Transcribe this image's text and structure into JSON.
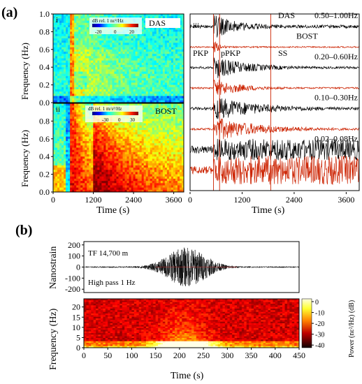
{
  "figure": {
    "panel_a_label": "(a)",
    "panel_b_label": "(b)"
  },
  "chart_data": [
    {
      "type": "heatmap",
      "panel": "i",
      "title": "DAS",
      "colorbar_label": "dB rel. 1 nε²/Hz",
      "colorbar_ticks": [
        -20,
        0,
        20
      ],
      "ylabel": "Frequency (Hz)",
      "yticks": [
        "0.0",
        "0.2",
        "0.4",
        "0.6",
        "0.8",
        "1.0"
      ],
      "ylim": [
        0,
        1.0
      ],
      "xlim": [
        0,
        3900
      ]
    },
    {
      "type": "heatmap",
      "panel": "ii",
      "title": "BOST",
      "colorbar_label": "dB rel. 1 m/s²/Hz",
      "colorbar_ticks": [
        -30,
        0,
        30
      ],
      "ylabel": "Frequency (Hz)",
      "yticks": [
        "0.0",
        "0.2",
        "0.4",
        "0.6",
        "0.8"
      ],
      "xlabel": "Time (s)",
      "xticks": [
        "0",
        "1200",
        "2400",
        "3600"
      ],
      "ylim": [
        0,
        1.0
      ],
      "xlim": [
        0,
        3900
      ]
    },
    {
      "type": "line",
      "panel": "iii",
      "xlabel": "Time (s)",
      "xticks": [
        "0",
        "1200",
        "2400",
        "3600"
      ],
      "xlim": [
        0,
        3900
      ],
      "phases": [
        {
          "name": "PKP",
          "t": 540
        },
        {
          "name": "pPKP",
          "t": 680
        },
        {
          "name": "SS",
          "t": 1860
        }
      ],
      "traces": [
        {
          "label": "DAS",
          "band": "0.50–1.00Hz",
          "color": "#000000",
          "amp": 0.9,
          "arrival": 540,
          "decay": 500,
          "coda": 0.25
        },
        {
          "label": "BOST",
          "band": "",
          "color": "#cc2200",
          "amp": 0.55,
          "arrival": 540,
          "decay": 150,
          "coda": 0.05
        },
        {
          "label": "",
          "band": "0.20–0.60Hz",
          "color": "#000000",
          "amp": 0.9,
          "arrival": 540,
          "decay": 700,
          "coda": 0.15
        },
        {
          "label": "",
          "band": "",
          "color": "#cc2200",
          "amp": 0.75,
          "arrival": 540,
          "decay": 600,
          "coda": 0.08
        },
        {
          "label": "",
          "band": "0.10–0.30Hz",
          "color": "#000000",
          "amp": 0.95,
          "arrival": 540,
          "decay": 900,
          "coda": 0.2
        },
        {
          "label": "",
          "band": "",
          "color": "#cc2200",
          "amp": 0.95,
          "arrival": 540,
          "decay": 1000,
          "coda": 0.12
        },
        {
          "label": "",
          "band": "0.02–0.08Hz",
          "color": "#000000",
          "amp": 0.55,
          "arrival": 540,
          "decay": 99999,
          "coda": 0.75
        },
        {
          "label": "",
          "band": "",
          "color": "#cc2200",
          "amp": 0.85,
          "arrival": 540,
          "decay": 99999,
          "coda": 0.75
        }
      ]
    },
    {
      "type": "line",
      "panel": "b-top",
      "ylabel": "Nanostrain",
      "yticks": [
        -200,
        -100,
        0,
        100,
        200
      ],
      "ylim": [
        -230,
        230
      ],
      "xlim": [
        0,
        450
      ],
      "annotations": [
        "TF 14,700 m",
        "High pass 1 Hz"
      ],
      "peak_time": 215,
      "peak_amp": 175
    },
    {
      "type": "heatmap",
      "panel": "b-bottom",
      "ylabel": "Frequency (Hz)",
      "yticks": [
        0,
        5,
        10,
        15,
        20
      ],
      "ylim": [
        0,
        24
      ],
      "xlabel": "Time (s)",
      "xticks": [
        0,
        50,
        100,
        150,
        200,
        250,
        300,
        350,
        400,
        450
      ],
      "xlim": [
        0,
        450
      ],
      "colorbar_label": "Power (nε²/Hz) (dB)",
      "colorbar_ticks": [
        0,
        -10,
        -20,
        -30,
        -40
      ]
    }
  ]
}
